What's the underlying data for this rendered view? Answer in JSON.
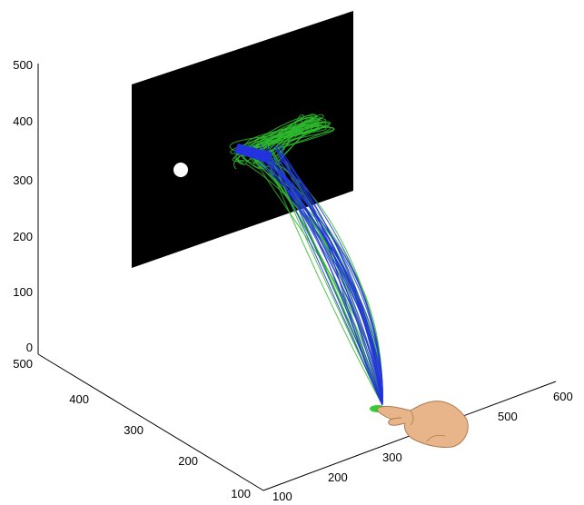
{
  "chart_data": {
    "type": "line",
    "title": "",
    "xlabel": "",
    "ylabel": "",
    "zlabel": "",
    "axes": {
      "z": {
        "ticks": [
          "0",
          "100",
          "200",
          "300",
          "400",
          "500"
        ],
        "range": [
          0,
          500
        ]
      },
      "left": {
        "ticks": [
          "500",
          "400",
          "300",
          "200",
          "100"
        ],
        "range": [
          100,
          500
        ]
      },
      "bottom_front": {
        "ticks": [
          "100",
          "200",
          "300"
        ],
        "range": [
          100,
          300
        ]
      },
      "bottom_right": {
        "ticks": [
          "500",
          "600"
        ],
        "range": [
          500,
          600
        ]
      }
    },
    "grid": false,
    "legend": "none",
    "screen": {
      "color": "#000000",
      "plane_depth": 500,
      "z_range": [
        150,
        500
      ]
    },
    "target": {
      "color": "#ffffff",
      "position": [
        300,
        500,
        310
      ]
    },
    "start_marker": {
      "color": "#33cc33",
      "position": [
        430,
        110,
        10
      ]
    },
    "series": [
      {
        "color": "#2eb82e",
        "trial_count": 24
      },
      {
        "color": "#2233dd",
        "trial_count": 24
      }
    ],
    "hand_icon": "pointing-hand-icon"
  }
}
